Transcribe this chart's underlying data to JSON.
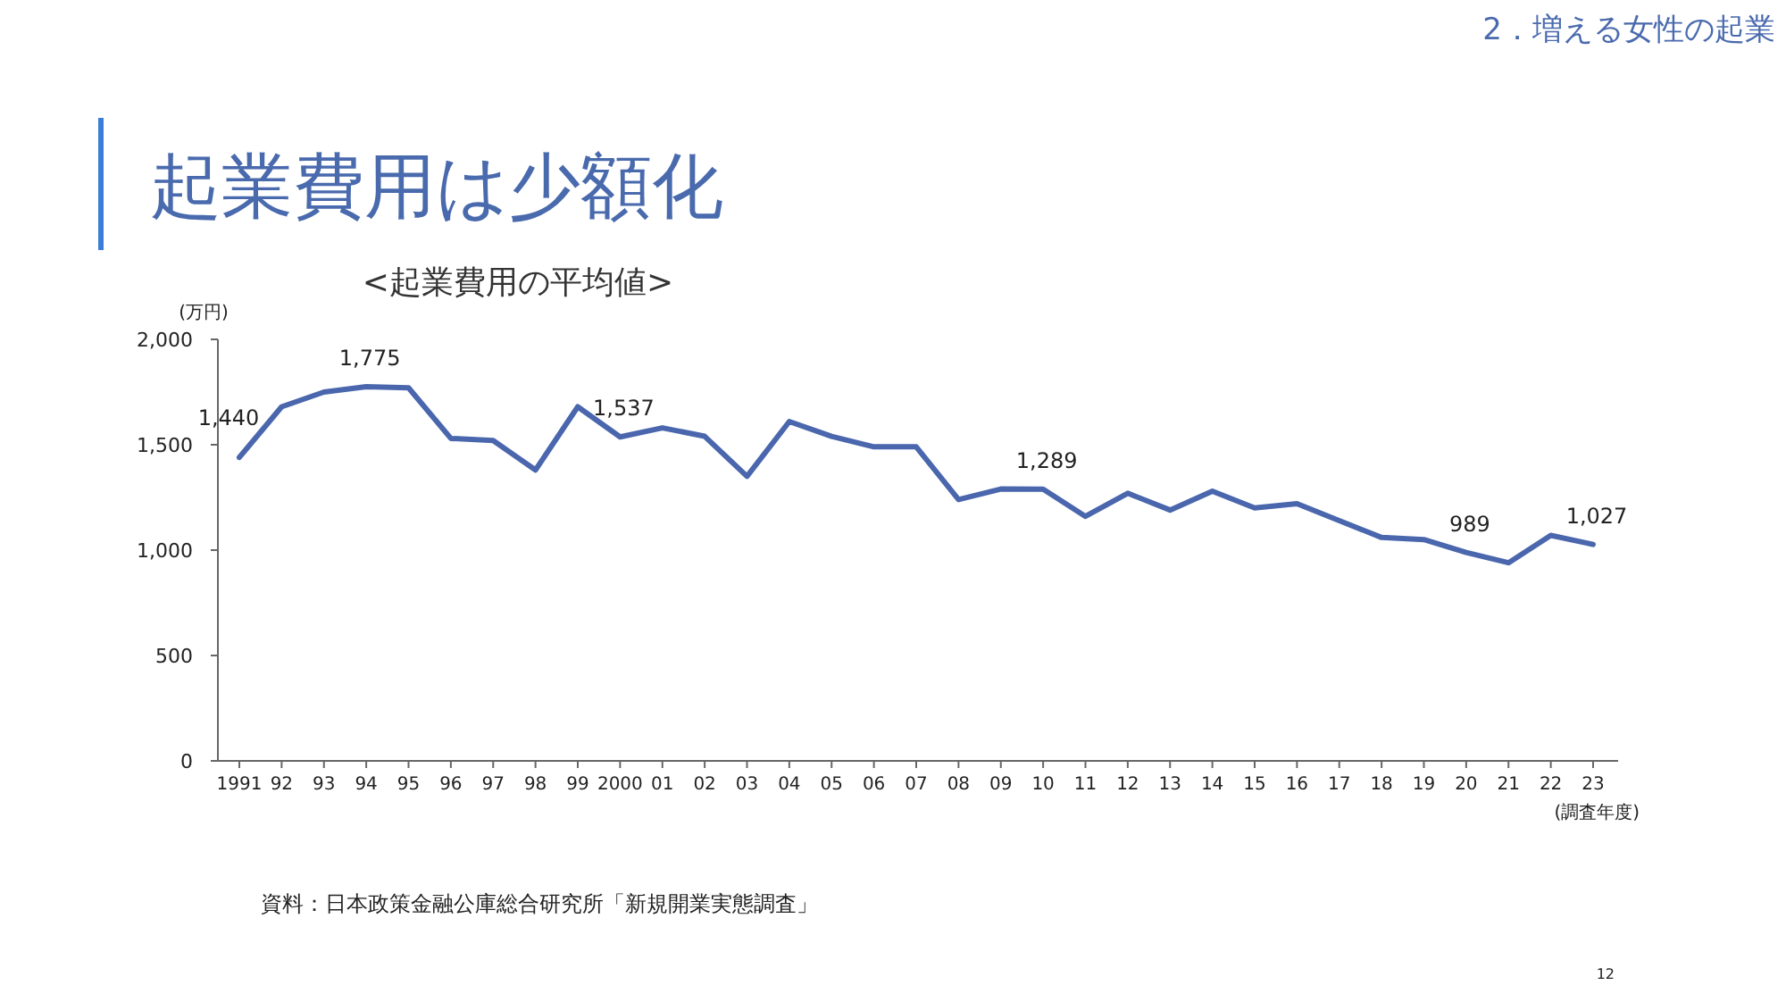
{
  "chart_data": {
    "type": "line",
    "title": "起業費用は少額化",
    "subtitle": "<起業費用の平均値>",
    "ylabel": "(万円)",
    "xlabel": "(調査年度)",
    "categories": [
      "1991",
      "92",
      "93",
      "94",
      "95",
      "96",
      "97",
      "98",
      "99",
      "2000",
      "01",
      "02",
      "03",
      "04",
      "05",
      "06",
      "07",
      "08",
      "09",
      "10",
      "11",
      "12",
      "13",
      "14",
      "15",
      "16",
      "17",
      "18",
      "19",
      "20",
      "21",
      "22",
      "23"
    ],
    "series": [
      {
        "color": "#4a66ad",
        "values": [
          1440,
          1680,
          1750,
          1775,
          1770,
          1530,
          1520,
          1380,
          1680,
          1537,
          1580,
          1540,
          1350,
          1610,
          1540,
          1490,
          1490,
          1240,
          1290,
          1289,
          1160,
          1270,
          1190,
          1280,
          1200,
          1220,
          1140,
          1060,
          1050,
          989,
          940,
          1070,
          1027
        ],
        "value_labels": [
          "1,440",
          null,
          null,
          "1,775",
          null,
          null,
          null,
          null,
          null,
          "1,537",
          null,
          null,
          null,
          null,
          null,
          null,
          null,
          null,
          null,
          "1,289",
          null,
          null,
          null,
          null,
          null,
          null,
          null,
          null,
          null,
          "989",
          null,
          null,
          "1,027"
        ]
      }
    ],
    "ylim": [
      0,
      2000
    ],
    "yticks": [
      0,
      500,
      {
        "value": 1000,
        "label": "1,000"
      },
      {
        "value": 1500,
        "label": "1,500"
      },
      {
        "value": 2000,
        "label": "2,000"
      }
    ],
    "grid": false,
    "marker": "none",
    "line_style": "solid",
    "annotations": [
      "2．増える女性の起業",
      "資料：日本政策金融公庫総合研究所「新規開業実態調査」",
      "12"
    ]
  }
}
